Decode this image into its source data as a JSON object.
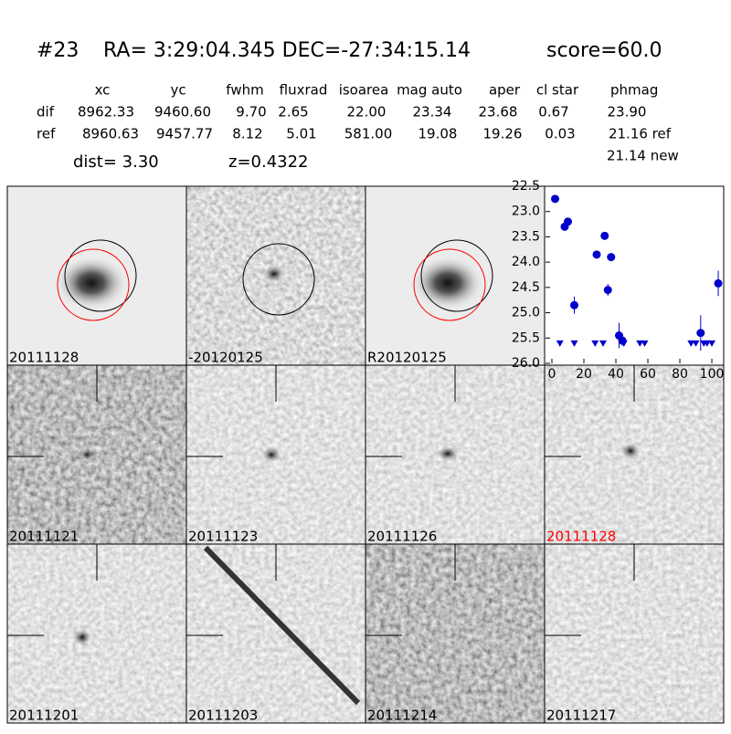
{
  "header": {
    "id": "#23",
    "coords": "RA= 3:29:04.345 DEC=-27:34:15.14",
    "score": "score=60.0"
  },
  "table": {
    "columns": [
      "xc",
      "yc",
      "fwhm",
      "fluxrad",
      "isoarea",
      "mag auto",
      "aper",
      "cl star",
      "phmag"
    ],
    "rows": [
      {
        "label": "dif",
        "values": [
          "8962.33",
          "9460.60",
          "9.70",
          "2.65",
          "22.00",
          "23.34",
          "23.68",
          "0.67",
          "23.90"
        ]
      },
      {
        "label": "ref",
        "values": [
          "8960.63",
          "9457.77",
          "8.12",
          "5.01",
          "581.00",
          "19.08",
          "19.26",
          "0.03",
          "21.16 ref"
        ]
      }
    ],
    "new_mag": "21.14 new"
  },
  "dist": "dist=  3.30",
  "redshift": "z=0.4322",
  "panels": [
    {
      "label": "20111128",
      "color": "#000000"
    },
    {
      "label": "-20120125",
      "color": "#000000"
    },
    {
      "label": "R20120125",
      "color": "#000000"
    },
    {
      "label": "20111121",
      "color": "#000000"
    },
    {
      "label": "20111123",
      "color": "#000000"
    },
    {
      "label": "20111126",
      "color": "#000000"
    },
    {
      "label": "20111128",
      "color": "#ff0000"
    },
    {
      "label": "20111201",
      "color": "#000000"
    },
    {
      "label": "20111203",
      "color": "#000000"
    },
    {
      "label": "20111214",
      "color": "#000000"
    },
    {
      "label": "20111217",
      "color": "#000000"
    }
  ],
  "chart_data": {
    "type": "scatter",
    "color": "#0000cc",
    "xlim": [
      -4,
      107.4
    ],
    "xticks": [
      0,
      20,
      40,
      60,
      80,
      100
    ],
    "ylim": [
      26,
      22.5
    ],
    "yticks": [
      {
        "value": 22.5,
        "label": "22.5"
      },
      {
        "value": 23,
        "label": "23.0"
      },
      {
        "value": 23.5,
        "label": "23.5"
      },
      {
        "value": 24,
        "label": "24.0"
      },
      {
        "value": 24.5,
        "label": "24.5"
      },
      {
        "value": 25,
        "label": "25.0"
      },
      {
        "value": 25.5,
        "label": "25.5"
      },
      {
        "value": 26,
        "label": "26.0"
      }
    ],
    "series": [
      {
        "name": "detections",
        "x": [
          2,
          8,
          10,
          14,
          28,
          33,
          35,
          37,
          42,
          44,
          93,
          104
        ],
        "values": [
          22.75,
          23.3,
          23.2,
          24.85,
          23.85,
          23.48,
          24.55,
          23.9,
          25.45,
          25.55,
          25.4,
          24.42
        ],
        "errors": [
          0.02,
          0.03,
          0.03,
          0.17,
          0.07,
          0.04,
          0.12,
          0.05,
          0.25,
          0.1,
          0.35,
          0.25
        ]
      },
      {
        "name": "upper limits",
        "x": [
          5,
          14,
          27,
          32,
          45,
          55,
          58,
          87,
          90,
          95,
          97,
          100
        ],
        "values": [
          25.6,
          25.6,
          25.6,
          25.6,
          25.6,
          25.6,
          25.6,
          25.6,
          25.6,
          25.6,
          25.6,
          25.6
        ]
      }
    ]
  }
}
